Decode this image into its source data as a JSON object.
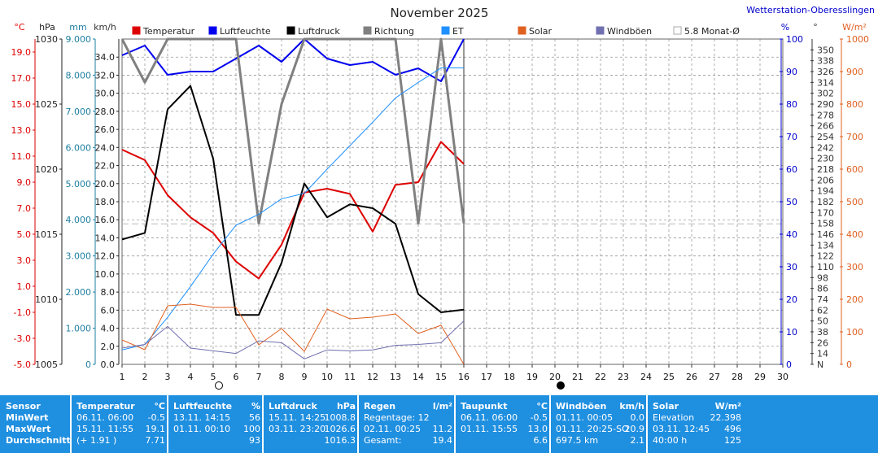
{
  "title": "November 2025",
  "station": "Wetterstation-Oberesslingen",
  "units_left": [
    "°C",
    "hPa",
    "mm",
    "km/h"
  ],
  "units_right": [
    "%",
    "°",
    "W/m²"
  ],
  "legend": [
    {
      "label": "Temperatur",
      "color": "#dd0000",
      "checked": true
    },
    {
      "label": "Luftfeuchte",
      "color": "#0000ee",
      "checked": true
    },
    {
      "label": "Luftdruck",
      "color": "#000000",
      "checked": true
    },
    {
      "label": "Richtung",
      "color": "#808080",
      "checked": true
    },
    {
      "label": "ET",
      "color": "#1e90ff",
      "checked": true
    },
    {
      "label": "Solar",
      "color": "#e06020",
      "checked": true
    },
    {
      "label": "Windböen",
      "color": "#7070b0",
      "checked": true
    },
    {
      "label": "5.8 Monat-Ø",
      "color": "#bbbbbb",
      "checked": false
    }
  ],
  "chart_data": {
    "type": "line",
    "x_days": [
      1,
      2,
      3,
      4,
      5,
      6,
      7,
      8,
      9,
      10,
      11,
      12,
      13,
      14,
      15,
      16
    ],
    "xlim": [
      1,
      30
    ],
    "x_ticks": [
      "1",
      "2",
      "3",
      "4",
      "5",
      "6",
      "7",
      "8",
      "9",
      "10",
      "11",
      "12",
      "13",
      "14",
      "15",
      "16",
      "17",
      "18",
      "19",
      "20",
      "21",
      "22",
      "23",
      "24",
      "25",
      "26",
      "27",
      "28",
      "29",
      "30"
    ],
    "axes": {
      "temp": {
        "unit": "°C",
        "range": [
          -5,
          20
        ],
        "ticks": [
          "19.0",
          "17.0",
          "15.0",
          "13.0",
          "11.0",
          "9.0",
          "7.0",
          "5.0",
          "3.0",
          "1.0",
          "-1.0",
          "-3.0",
          "-5.0"
        ],
        "color": "#dd0000"
      },
      "pressure": {
        "unit": "hPa",
        "range": [
          1005,
          1030
        ],
        "ticks": [
          "1030",
          "1025",
          "1020",
          "1015",
          "1010",
          "1005"
        ],
        "color": "#222222"
      },
      "rain": {
        "unit": "mm",
        "range": [
          0,
          9
        ],
        "ticks": [
          "9.000",
          "8.000",
          "7.000",
          "6.000",
          "5.000",
          "4.000",
          "3.000",
          "2.000",
          "1.000",
          "0"
        ],
        "color": "#1e7fa0"
      },
      "wind": {
        "unit": "km/h",
        "range": [
          0,
          36
        ],
        "ticks": [
          "34.0",
          "32.0",
          "30.0",
          "28.0",
          "26.0",
          "24.0",
          "22.0",
          "20.0",
          "18.0",
          "16.0",
          "14.0",
          "12.0",
          "10.0",
          "8.0",
          "6.0",
          "4.0",
          "2.0",
          "0.0"
        ],
        "color": "#222222"
      },
      "humidity": {
        "unit": "%",
        "range": [
          0,
          100
        ],
        "ticks": [
          "100",
          "90",
          "80",
          "70",
          "60",
          "50",
          "40",
          "30",
          "20",
          "10",
          "0"
        ],
        "color": "#0000cc"
      },
      "direction": {
        "unit": "°",
        "range": [
          2,
          362
        ],
        "ticks": [
          "350",
          "338",
          "326",
          "314",
          "302",
          "290",
          "278",
          "266",
          "254",
          "242",
          "230",
          "218",
          "206",
          "194",
          "182",
          "170",
          "158",
          "146",
          "134",
          "122",
          "110",
          "98",
          "86",
          "74",
          "62",
          "50",
          "38",
          "26",
          "14",
          "N"
        ],
        "color": "#333333"
      },
      "solar": {
        "unit": "W/m²",
        "range": [
          0,
          1000
        ],
        "ticks": [
          "1000",
          "900",
          "800",
          "700",
          "600",
          "500",
          "400",
          "300",
          "200",
          "100",
          "0"
        ],
        "color": "#e06020"
      }
    },
    "series": [
      {
        "name": "Temperatur",
        "axis": "temp",
        "color": "#dd0000",
        "width": 2,
        "values": [
          11.5,
          10.7,
          8.0,
          6.3,
          5.1,
          2.9,
          1.6,
          4.2,
          8.2,
          8.5,
          8.1,
          5.2,
          8.8,
          9.0,
          12.1,
          10.4
        ]
      },
      {
        "name": "Luftfeuchte",
        "axis": "humidity",
        "color": "#0000ee",
        "width": 2,
        "values": [
          95,
          98,
          89,
          90,
          90,
          94,
          98,
          93,
          100,
          94,
          92,
          93,
          89,
          91,
          87,
          100
        ]
      },
      {
        "name": "Luftdruck",
        "axis": "pressure",
        "color": "#000000",
        "width": 2,
        "values": [
          1014.6,
          1015.1,
          1024.6,
          1026.4,
          1020.8,
          1008.8,
          1008.8,
          1012.8,
          1018.9,
          1016.3,
          1017.3,
          1017.0,
          1015.8,
          1010.4,
          1009.0,
          1009.2
        ]
      },
      {
        "name": "Richtung",
        "axis": "direction",
        "color": "#808080",
        "width": 3,
        "values": [
          362,
          314,
          362,
          362,
          362,
          362,
          158,
          290,
          362,
          362,
          362,
          362,
          362,
          158,
          362,
          158
        ]
      },
      {
        "name": "ET",
        "axis": "rain",
        "color": "#1e90ff",
        "width": 1,
        "values": [
          0.4,
          0.55,
          1.3,
          2.15,
          3.05,
          3.85,
          4.15,
          4.58,
          4.73,
          5.4,
          6.05,
          6.7,
          7.37,
          7.8,
          8.2,
          8.2
        ]
      },
      {
        "name": "Solar",
        "axis": "solar",
        "color": "#e06020",
        "width": 1,
        "values": [
          75,
          45,
          180,
          185,
          175,
          175,
          60,
          110,
          40,
          170,
          140,
          145,
          155,
          95,
          120,
          0
        ]
      },
      {
        "name": "Windböen",
        "axis": "wind",
        "color": "#7070b0",
        "width": 1,
        "values": [
          1.8,
          2.2,
          4.2,
          1.8,
          1.5,
          1.2,
          2.6,
          2.4,
          0.6,
          1.6,
          1.5,
          1.6,
          2.1,
          2.2,
          2.4,
          4.8
        ]
      }
    ],
    "month_avg": {
      "label": "5.8 Monat-Ø",
      "axis": "temp",
      "value": 5.8
    },
    "moon_markers": [
      {
        "day": 5.5,
        "phase": "full"
      },
      {
        "day": 20.5,
        "phase": "new"
      }
    ],
    "grid": true
  },
  "stats": {
    "headers": [
      "Sensor",
      "Temperatur",
      "°C",
      "Luftfeuchte",
      "%",
      "Luftdruck",
      "hPa",
      "Regen",
      "l/m²",
      "Taupunkt",
      "°C",
      "Windböen",
      "km/h",
      "Solar",
      "W/m²"
    ],
    "row_labels": [
      "MinWert",
      "MaxWert",
      "Durchschnitt"
    ],
    "temp": [
      [
        "06.11.  06:00",
        "-0.5"
      ],
      [
        "15.11.  11:55",
        "19.1"
      ],
      [
        "(+ 1.91 )",
        "7.71"
      ]
    ],
    "hum": [
      [
        "13.11.  14:15",
        "56"
      ],
      [
        "01.11.  00:10",
        "100"
      ],
      [
        "",
        "93"
      ]
    ],
    "press": [
      [
        "15.11.  14:25",
        "1008.8"
      ],
      [
        "03.11.  23:20",
        "1026.6"
      ],
      [
        "",
        "1016.3"
      ]
    ],
    "rain": [
      [
        "Regentage: 12",
        ""
      ],
      [
        "02.11.  00:25",
        "11.2"
      ],
      [
        "Gesamt:",
        "19.4"
      ]
    ],
    "dew": [
      [
        "06.11.  06:00",
        "-0.5"
      ],
      [
        "01.11.  15:55",
        "13.0"
      ],
      [
        "",
        "6.6"
      ]
    ],
    "wind": [
      [
        "01.11.  00:05",
        "0.0"
      ],
      [
        "01.11.  20:25-SO",
        "20.9"
      ],
      [
        "697.5 km",
        "2.1"
      ]
    ],
    "solar": [
      [
        "Elevation",
        "22.398"
      ],
      [
        "03.11.  12:45",
        "496"
      ],
      [
        "40:00 h",
        "125"
      ]
    ]
  }
}
